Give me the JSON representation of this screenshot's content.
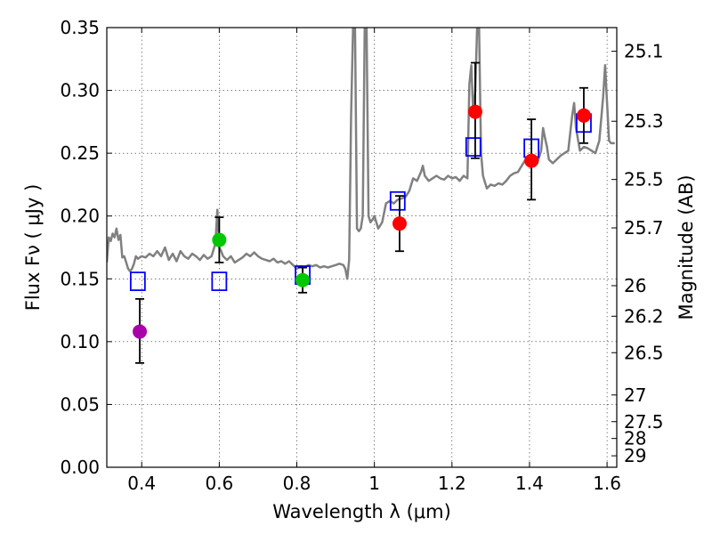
{
  "chart_data": {
    "type": "scatter",
    "title": "",
    "xlabel": "Wavelength  λ (μm)",
    "ylabel": "Flux  Fν  ( μJy )",
    "y2label": "Magnitude (AB)",
    "xlim": [
      0.31,
      1.625
    ],
    "ylim": [
      0.0,
      0.35
    ],
    "grid": true,
    "x_ticks": [
      {
        "value": 0.4,
        "label": "0.4"
      },
      {
        "value": 0.6,
        "label": "0.6"
      },
      {
        "value": 0.8,
        "label": "0.8"
      },
      {
        "value": 1.0,
        "label": "1"
      },
      {
        "value": 1.2,
        "label": "1.2"
      },
      {
        "value": 1.4,
        "label": "1.4"
      },
      {
        "value": 1.6,
        "label": "1.6"
      }
    ],
    "y_ticks": [
      {
        "value": 0.0,
        "label": "0.00"
      },
      {
        "value": 0.05,
        "label": "0.05"
      },
      {
        "value": 0.1,
        "label": "0.10"
      },
      {
        "value": 0.15,
        "label": "0.15"
      },
      {
        "value": 0.2,
        "label": "0.20"
      },
      {
        "value": 0.25,
        "label": "0.25"
      },
      {
        "value": 0.3,
        "label": "0.30"
      },
      {
        "value": 0.35,
        "label": "0.35"
      }
    ],
    "mag_ticks": [
      {
        "value": 25.1,
        "label": "25.1"
      },
      {
        "value": 25.3,
        "label": "25.3"
      },
      {
        "value": 25.5,
        "label": "25.5"
      },
      {
        "value": 25.7,
        "label": "25.7"
      },
      {
        "value": 26,
        "label": "26"
      },
      {
        "value": 26.2,
        "label": "26.2"
      },
      {
        "value": 26.5,
        "label": "26.5"
      },
      {
        "value": 27,
        "label": "27"
      },
      {
        "value": 27.5,
        "label": "27.5"
      },
      {
        "value": 28,
        "label": "28"
      },
      {
        "value": 29,
        "label": "29"
      }
    ],
    "series": [
      {
        "name": "model-spectrum",
        "kind": "line",
        "color": "#808080",
        "points": [
          [
            0.31,
            0.163
          ],
          [
            0.315,
            0.183
          ],
          [
            0.32,
            0.18
          ],
          [
            0.325,
            0.186
          ],
          [
            0.33,
            0.183
          ],
          [
            0.335,
            0.19
          ],
          [
            0.34,
            0.181
          ],
          [
            0.345,
            0.185
          ],
          [
            0.35,
            0.167
          ],
          [
            0.355,
            0.168
          ],
          [
            0.36,
            0.163
          ],
          [
            0.365,
            0.158
          ],
          [
            0.37,
            0.156
          ],
          [
            0.375,
            0.158
          ],
          [
            0.38,
            0.162
          ],
          [
            0.385,
            0.168
          ],
          [
            0.39,
            0.166
          ],
          [
            0.4,
            0.168
          ],
          [
            0.41,
            0.167
          ],
          [
            0.42,
            0.17
          ],
          [
            0.43,
            0.168
          ],
          [
            0.44,
            0.172
          ],
          [
            0.45,
            0.168
          ],
          [
            0.46,
            0.175
          ],
          [
            0.47,
            0.165
          ],
          [
            0.48,
            0.17
          ],
          [
            0.49,
            0.164
          ],
          [
            0.5,
            0.172
          ],
          [
            0.51,
            0.168
          ],
          [
            0.52,
            0.166
          ],
          [
            0.53,
            0.17
          ],
          [
            0.54,
            0.168
          ],
          [
            0.55,
            0.165
          ],
          [
            0.56,
            0.169
          ],
          [
            0.57,
            0.166
          ],
          [
            0.58,
            0.168
          ],
          [
            0.59,
            0.178
          ],
          [
            0.595,
            0.205
          ],
          [
            0.6,
            0.175
          ],
          [
            0.605,
            0.172
          ],
          [
            0.61,
            0.168
          ],
          [
            0.62,
            0.165
          ],
          [
            0.63,
            0.168
          ],
          [
            0.64,
            0.163
          ],
          [
            0.65,
            0.165
          ],
          [
            0.66,
            0.167
          ],
          [
            0.67,
            0.17
          ],
          [
            0.68,
            0.168
          ],
          [
            0.69,
            0.171
          ],
          [
            0.7,
            0.168
          ],
          [
            0.71,
            0.166
          ],
          [
            0.72,
            0.165
          ],
          [
            0.73,
            0.164
          ],
          [
            0.74,
            0.166
          ],
          [
            0.75,
            0.163
          ],
          [
            0.76,
            0.164
          ],
          [
            0.77,
            0.162
          ],
          [
            0.78,
            0.164
          ],
          [
            0.79,
            0.161
          ],
          [
            0.8,
            0.158
          ],
          [
            0.81,
            0.16
          ],
          [
            0.82,
            0.159
          ],
          [
            0.83,
            0.161
          ],
          [
            0.84,
            0.16
          ],
          [
            0.85,
            0.161
          ],
          [
            0.86,
            0.159
          ],
          [
            0.87,
            0.16
          ],
          [
            0.88,
            0.159
          ],
          [
            0.89,
            0.16
          ],
          [
            0.9,
            0.161
          ],
          [
            0.91,
            0.162
          ],
          [
            0.92,
            0.161
          ],
          [
            0.925,
            0.158
          ],
          [
            0.93,
            0.15
          ],
          [
            0.935,
            0.165
          ],
          [
            0.94,
            0.28
          ],
          [
            0.945,
            0.35
          ],
          [
            0.95,
            0.35
          ],
          [
            0.955,
            0.19
          ],
          [
            0.96,
            0.188
          ],
          [
            0.965,
            0.19
          ],
          [
            0.97,
            0.2
          ],
          [
            0.975,
            0.35
          ],
          [
            0.98,
            0.35
          ],
          [
            0.985,
            0.2
          ],
          [
            0.99,
            0.195
          ],
          [
            0.995,
            0.197
          ],
          [
            1.0,
            0.2
          ],
          [
            1.01,
            0.19
          ],
          [
            1.02,
            0.195
          ],
          [
            1.03,
            0.21
          ],
          [
            1.04,
            0.212
          ],
          [
            1.05,
            0.21
          ],
          [
            1.06,
            0.213
          ],
          [
            1.07,
            0.214
          ],
          [
            1.08,
            0.215
          ],
          [
            1.09,
            0.22
          ],
          [
            1.1,
            0.23
          ],
          [
            1.11,
            0.228
          ],
          [
            1.12,
            0.235
          ],
          [
            1.125,
            0.24
          ],
          [
            1.13,
            0.232
          ],
          [
            1.14,
            0.228
          ],
          [
            1.15,
            0.23
          ],
          [
            1.16,
            0.232
          ],
          [
            1.17,
            0.23
          ],
          [
            1.18,
            0.229
          ],
          [
            1.19,
            0.232
          ],
          [
            1.2,
            0.23
          ],
          [
            1.21,
            0.231
          ],
          [
            1.22,
            0.228
          ],
          [
            1.23,
            0.232
          ],
          [
            1.24,
            0.23
          ],
          [
            1.245,
            0.305
          ],
          [
            1.25,
            0.32
          ],
          [
            1.255,
            0.28
          ],
          [
            1.26,
            0.3
          ],
          [
            1.265,
            0.35
          ],
          [
            1.27,
            0.35
          ],
          [
            1.275,
            0.25
          ],
          [
            1.28,
            0.232
          ],
          [
            1.29,
            0.222
          ],
          [
            1.3,
            0.225
          ],
          [
            1.31,
            0.224
          ],
          [
            1.32,
            0.226
          ],
          [
            1.33,
            0.225
          ],
          [
            1.34,
            0.228
          ],
          [
            1.35,
            0.232
          ],
          [
            1.36,
            0.234
          ],
          [
            1.37,
            0.235
          ],
          [
            1.38,
            0.24
          ],
          [
            1.39,
            0.245
          ],
          [
            1.4,
            0.242
          ],
          [
            1.41,
            0.24
          ],
          [
            1.42,
            0.242
          ],
          [
            1.43,
            0.252
          ],
          [
            1.435,
            0.27
          ],
          [
            1.44,
            0.262
          ],
          [
            1.445,
            0.255
          ],
          [
            1.45,
            0.245
          ],
          [
            1.46,
            0.242
          ],
          [
            1.47,
            0.245
          ],
          [
            1.48,
            0.248
          ],
          [
            1.49,
            0.25
          ],
          [
            1.5,
            0.252
          ],
          [
            1.51,
            0.28
          ],
          [
            1.515,
            0.29
          ],
          [
            1.52,
            0.27
          ],
          [
            1.53,
            0.252
          ],
          [
            1.54,
            0.255
          ],
          [
            1.55,
            0.254
          ],
          [
            1.56,
            0.252
          ],
          [
            1.57,
            0.25
          ],
          [
            1.58,
            0.26
          ],
          [
            1.59,
            0.295
          ],
          [
            1.595,
            0.32
          ],
          [
            1.6,
            0.29
          ],
          [
            1.605,
            0.26
          ],
          [
            1.61,
            0.258
          ],
          [
            1.62,
            0.258
          ]
        ]
      },
      {
        "name": "model-photometry",
        "kind": "open-squares",
        "color": "#0000ff",
        "points": [
          [
            0.39,
            0.148
          ],
          [
            0.6,
            0.148
          ],
          [
            0.815,
            0.153
          ],
          [
            1.06,
            0.212
          ],
          [
            1.255,
            0.255
          ],
          [
            1.405,
            0.254
          ],
          [
            1.54,
            0.274
          ]
        ]
      },
      {
        "name": "observed-purple",
        "kind": "filled-circles",
        "color": "#aa00aa",
        "points": [
          {
            "x": 0.395,
            "y": 0.108,
            "lo": 0.083,
            "hi": 0.134
          }
        ]
      },
      {
        "name": "observed-green",
        "kind": "filled-circles",
        "color": "#00c800",
        "points": [
          {
            "x": 0.6,
            "y": 0.181,
            "lo": 0.163,
            "hi": 0.199
          },
          {
            "x": 0.815,
            "y": 0.149,
            "lo": 0.139,
            "hi": 0.159
          }
        ]
      },
      {
        "name": "observed-red",
        "kind": "filled-circles",
        "color": "#ff0000",
        "points": [
          {
            "x": 1.065,
            "y": 0.194,
            "lo": 0.172,
            "hi": 0.216
          },
          {
            "x": 1.26,
            "y": 0.283,
            "lo": 0.246,
            "hi": 0.322
          },
          {
            "x": 1.405,
            "y": 0.244,
            "lo": 0.213,
            "hi": 0.277
          },
          {
            "x": 1.54,
            "y": 0.28,
            "lo": 0.258,
            "hi": 0.302
          }
        ]
      }
    ]
  }
}
